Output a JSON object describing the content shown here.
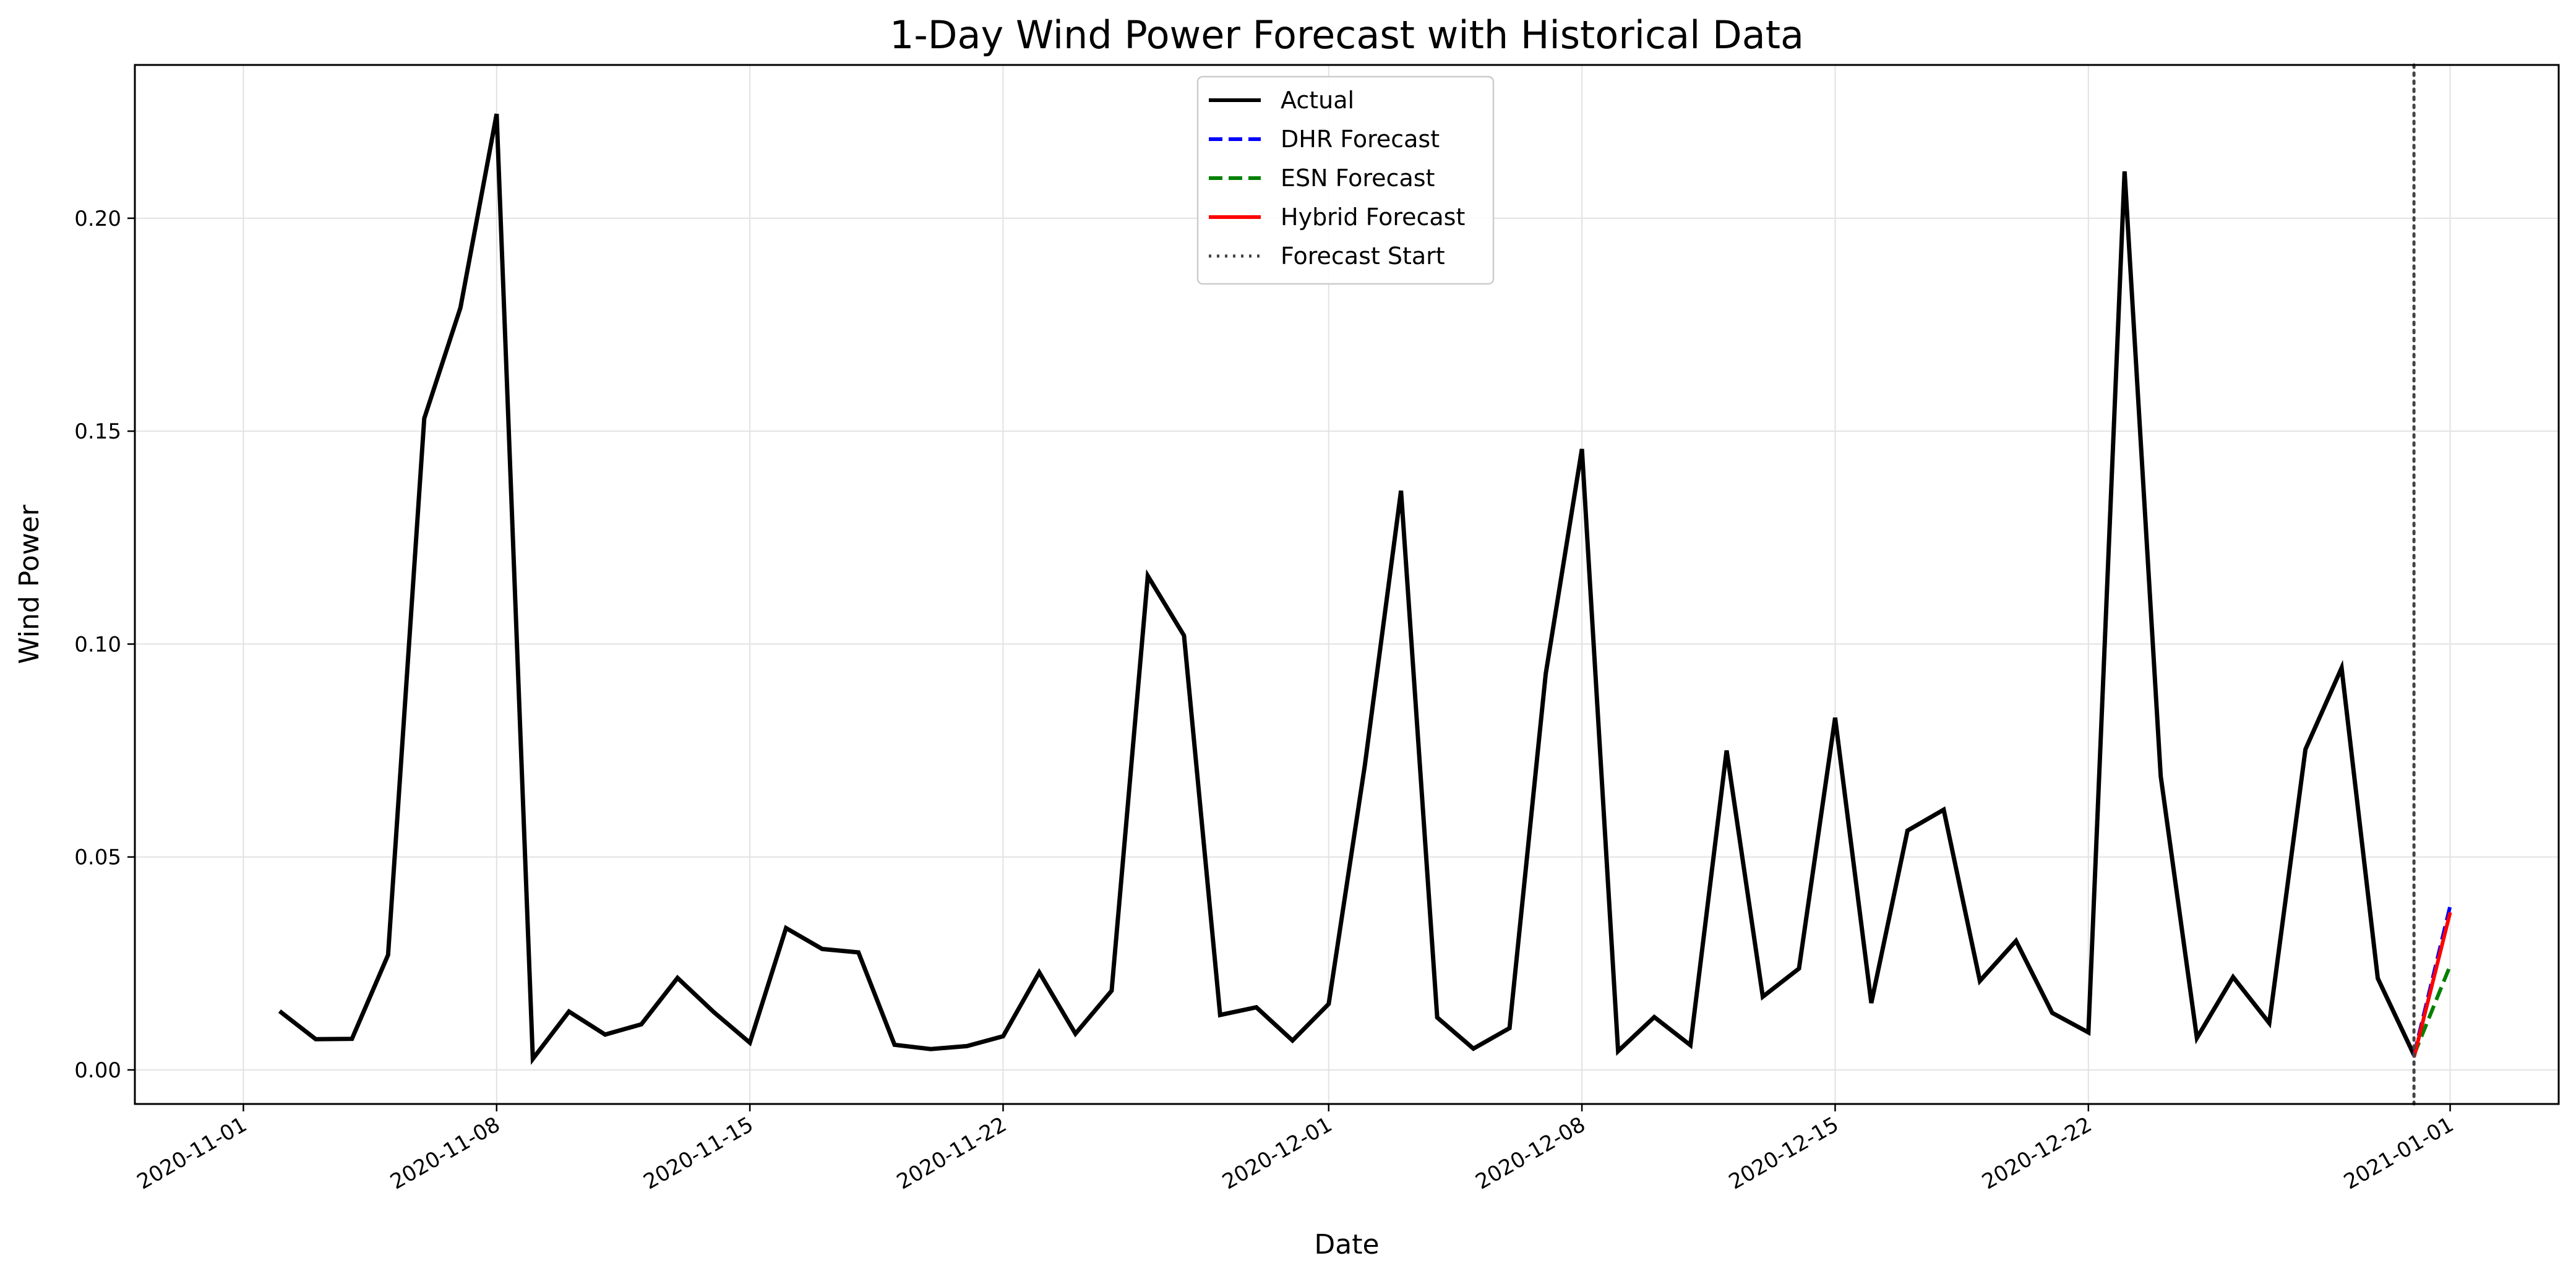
{
  "chart_data": {
    "type": "line",
    "title": "1-Day Wind Power Forecast with Historical Data",
    "xlabel": "Date",
    "ylabel": "Wind Power",
    "x_tick_labels": [
      "2020-11-01",
      "2020-11-08",
      "2020-11-15",
      "2020-11-22",
      "2020-12-01",
      "2020-12-08",
      "2020-12-15",
      "2020-12-22",
      "2021-01-01"
    ],
    "y_tick_labels": [
      "0.00",
      "0.05",
      "0.10",
      "0.15",
      "0.20"
    ],
    "ylim": [
      -0.008,
      0.236
    ],
    "xlim": [
      "2020-10-29",
      "2021-01-04"
    ],
    "grid": true,
    "legend_position": "upper-center",
    "forecast_start": "2020-12-31",
    "series": [
      {
        "name": "Actual",
        "color": "#000000",
        "style": "solid",
        "points": [
          [
            "2020-11-02",
            0.0138
          ],
          [
            "2020-11-03",
            0.0072
          ],
          [
            "2020-11-04",
            0.0073
          ],
          [
            "2020-11-05",
            0.027
          ],
          [
            "2020-11-06",
            0.153
          ],
          [
            "2020-11-07",
            0.179
          ],
          [
            "2020-11-08",
            0.2245
          ],
          [
            "2020-11-09",
            0.0026
          ],
          [
            "2020-11-10",
            0.0137
          ],
          [
            "2020-11-11",
            0.0083
          ],
          [
            "2020-11-12",
            0.0107
          ],
          [
            "2020-11-13",
            0.0216
          ],
          [
            "2020-11-14",
            0.0136
          ],
          [
            "2020-11-15",
            0.0064
          ],
          [
            "2020-11-16",
            0.0333
          ],
          [
            "2020-11-17",
            0.0284
          ],
          [
            "2020-11-18",
            0.0276
          ],
          [
            "2020-11-19",
            0.0059
          ],
          [
            "2020-11-20",
            0.0049
          ],
          [
            "2020-11-21",
            0.0056
          ],
          [
            "2020-11-22",
            0.0079
          ],
          [
            "2020-11-23",
            0.0229
          ],
          [
            "2020-11-24",
            0.0085
          ],
          [
            "2020-11-25",
            0.0186
          ],
          [
            "2020-11-26",
            0.116
          ],
          [
            "2020-11-27",
            0.102
          ],
          [
            "2020-11-28",
            0.0129
          ],
          [
            "2020-11-29",
            0.0147
          ],
          [
            "2020-11-30",
            0.0069
          ],
          [
            "2020-12-01",
            0.0155
          ],
          [
            "2020-12-02",
            0.0715
          ],
          [
            "2020-12-03",
            0.136
          ],
          [
            "2020-12-04",
            0.0123
          ],
          [
            "2020-12-05",
            0.005
          ],
          [
            "2020-12-06",
            0.0098
          ],
          [
            "2020-12-07",
            0.093
          ],
          [
            "2020-12-08",
            0.1458
          ],
          [
            "2020-12-09",
            0.0044
          ],
          [
            "2020-12-10",
            0.0124
          ],
          [
            "2020-12-11",
            0.0058
          ],
          [
            "2020-12-12",
            0.075
          ],
          [
            "2020-12-13",
            0.0172
          ],
          [
            "2020-12-14",
            0.0238
          ],
          [
            "2020-12-15",
            0.0827
          ],
          [
            "2020-12-16",
            0.0157
          ],
          [
            "2020-12-17",
            0.0562
          ],
          [
            "2020-12-18",
            0.0611
          ],
          [
            "2020-12-19",
            0.0209
          ],
          [
            "2020-12-20",
            0.0303
          ],
          [
            "2020-12-21",
            0.0134
          ],
          [
            "2020-12-22",
            0.0088
          ],
          [
            "2020-12-23",
            0.211
          ],
          [
            "2020-12-24",
            0.069
          ],
          [
            "2020-12-25",
            0.0075
          ],
          [
            "2020-12-26",
            0.0218
          ],
          [
            "2020-12-27",
            0.011
          ],
          [
            "2020-12-28",
            0.0753
          ],
          [
            "2020-12-29",
            0.0944
          ],
          [
            "2020-12-30",
            0.0215
          ],
          [
            "2020-12-31",
            0.0035
          ]
        ]
      },
      {
        "name": "DHR Forecast",
        "color": "#0000ff",
        "style": "dashed",
        "points": [
          [
            "2020-12-31",
            0.0035
          ],
          [
            "2021-01-01",
            0.0385
          ]
        ]
      },
      {
        "name": "ESN Forecast",
        "color": "#008000",
        "style": "dashed",
        "points": [
          [
            "2020-12-31",
            0.0035
          ],
          [
            "2021-01-01",
            0.0245
          ]
        ]
      },
      {
        "name": "Hybrid Forecast",
        "color": "#ff0000",
        "style": "solid",
        "points": [
          [
            "2020-12-31",
            0.003
          ],
          [
            "2021-01-01",
            0.037
          ]
        ]
      }
    ],
    "forecast_start_line": {
      "name": "Forecast Start",
      "color": "#444444",
      "style": "dotted"
    }
  }
}
